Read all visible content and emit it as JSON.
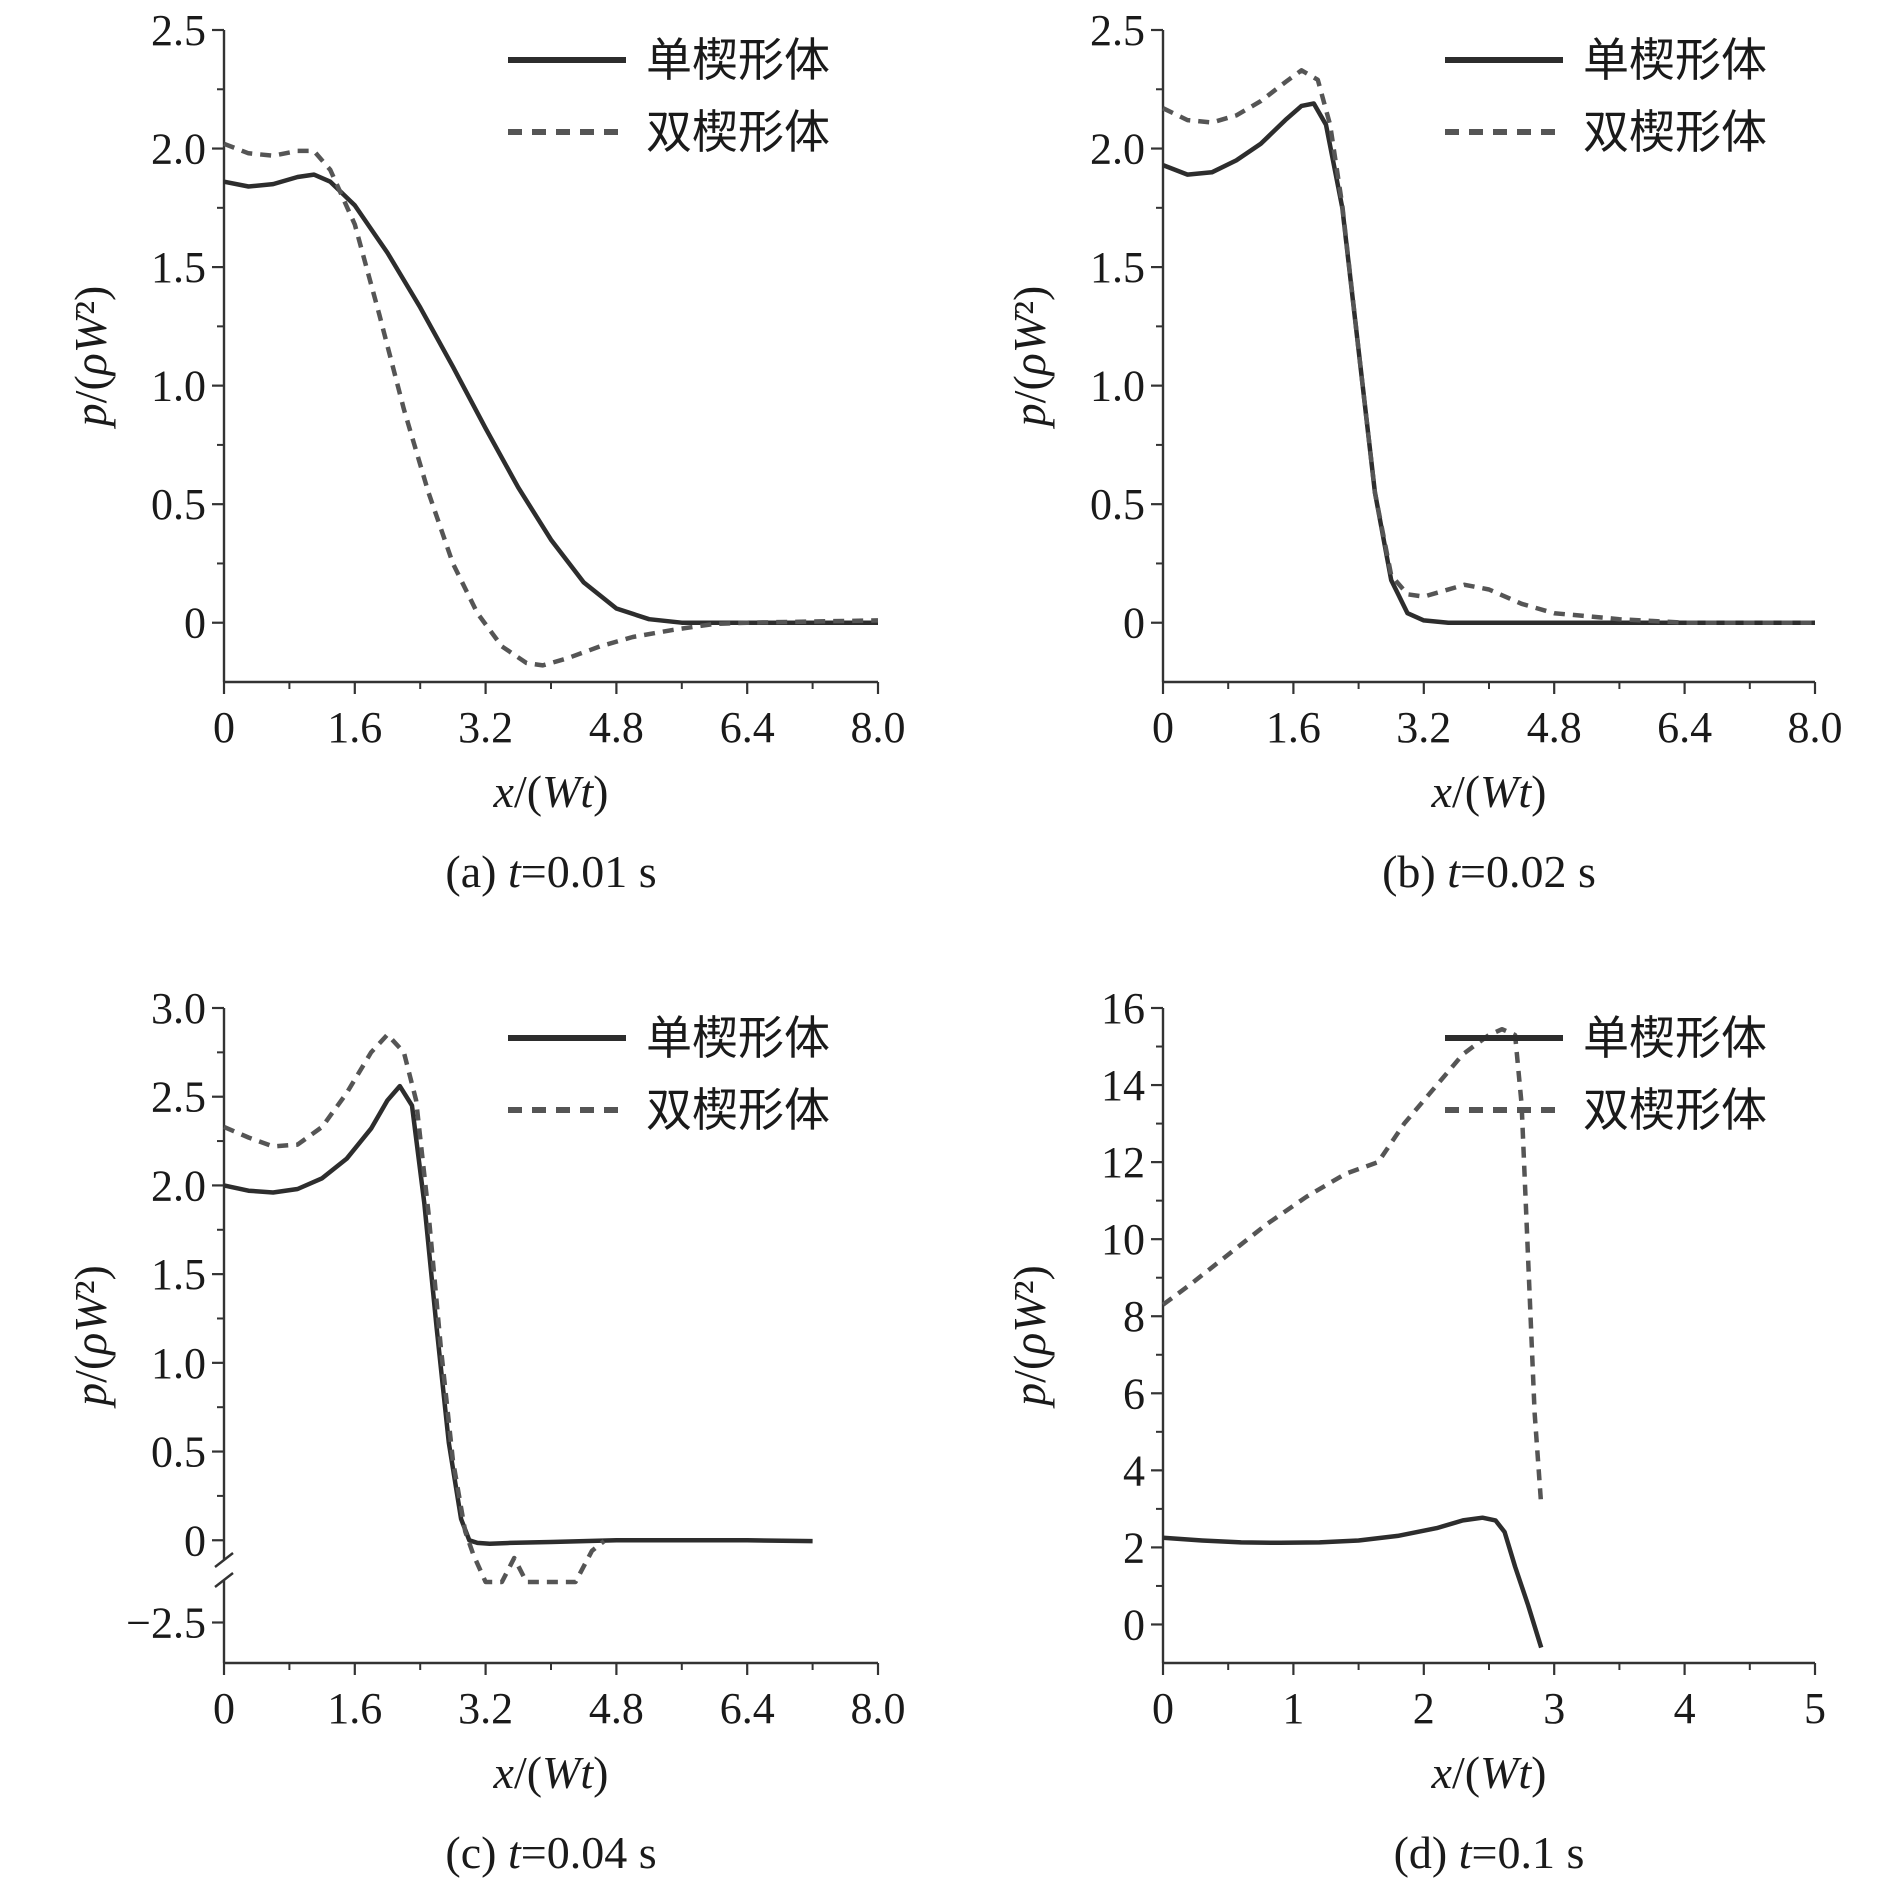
{
  "legend": {
    "series_solid": "单楔形体",
    "series_dashed": "双楔形体"
  },
  "colors": {
    "solid": "#2d2d2d",
    "dashed": "#555555",
    "axis": "#333333",
    "text": "#1a1a1a"
  },
  "chart_data": [
    {
      "type": "line",
      "panel": "a",
      "caption_prefix": "(a) ",
      "caption_var": "t",
      "caption_suffix": "=0.01 s",
      "xlabel": "x/(Wt)",
      "ylabel": "p/(ρW²)",
      "xlim": [
        0,
        8.0
      ],
      "ylim": [
        -0.25,
        2.5
      ],
      "xticks": [
        "0",
        "1.6",
        "3.2",
        "4.8",
        "6.4",
        "8.0"
      ],
      "xtick_values": [
        0,
        1.6,
        3.2,
        4.8,
        6.4,
        8.0
      ],
      "yticks": [
        "0",
        "0.5",
        "1.0",
        "1.5",
        "2.0",
        "2.5"
      ],
      "ytick_values": [
        0,
        0.5,
        1.0,
        1.5,
        2.0,
        2.5
      ],
      "series": [
        {
          "name": "单楔形体",
          "style": "solid",
          "x": [
            0,
            0.3,
            0.6,
            0.9,
            1.1,
            1.3,
            1.6,
            2.0,
            2.4,
            2.8,
            3.2,
            3.6,
            4.0,
            4.4,
            4.8,
            5.2,
            5.6,
            6.4,
            7.2,
            8.0
          ],
          "y": [
            1.86,
            1.84,
            1.85,
            1.88,
            1.89,
            1.86,
            1.76,
            1.56,
            1.33,
            1.08,
            0.82,
            0.57,
            0.35,
            0.17,
            0.06,
            0.015,
            0.0,
            0.0,
            0.0,
            0.0
          ]
        },
        {
          "name": "双楔形体",
          "style": "dashed",
          "x": [
            0,
            0.3,
            0.6,
            0.9,
            1.1,
            1.3,
            1.6,
            1.9,
            2.2,
            2.5,
            2.8,
            3.1,
            3.4,
            3.7,
            3.9,
            4.2,
            4.6,
            5.0,
            5.5,
            6.0,
            6.4,
            7.2,
            8.0
          ],
          "y": [
            2.02,
            1.98,
            1.97,
            1.99,
            1.99,
            1.91,
            1.68,
            1.3,
            0.9,
            0.55,
            0.25,
            0.04,
            -0.1,
            -0.17,
            -0.18,
            -0.15,
            -0.1,
            -0.06,
            -0.03,
            -0.005,
            0.0,
            0.005,
            0.01
          ]
        }
      ]
    },
    {
      "type": "line",
      "panel": "b",
      "caption_prefix": "(b) ",
      "caption_var": "t",
      "caption_suffix": "=0.02 s",
      "xlabel": "x/(Wt)",
      "ylabel": "p/(ρW²)",
      "xlim": [
        0,
        8.0
      ],
      "ylim": [
        -0.25,
        2.5
      ],
      "xticks": [
        "0",
        "1.6",
        "3.2",
        "4.8",
        "6.4",
        "8.0"
      ],
      "xtick_values": [
        0,
        1.6,
        3.2,
        4.8,
        6.4,
        8.0
      ],
      "yticks": [
        "0",
        "0.5",
        "1.0",
        "1.5",
        "2.0",
        "2.5"
      ],
      "ytick_values": [
        0,
        0.5,
        1.0,
        1.5,
        2.0,
        2.5
      ],
      "series": [
        {
          "name": "单楔形体",
          "style": "solid",
          "x": [
            0,
            0.3,
            0.6,
            0.9,
            1.2,
            1.5,
            1.7,
            1.85,
            2.0,
            2.2,
            2.4,
            2.6,
            2.8,
            3.0,
            3.2,
            3.5,
            4.0,
            4.8,
            6.4,
            8.0
          ],
          "y": [
            1.93,
            1.89,
            1.9,
            1.95,
            2.02,
            2.12,
            2.18,
            2.19,
            2.1,
            1.75,
            1.15,
            0.55,
            0.18,
            0.04,
            0.01,
            0.0,
            0.0,
            0.0,
            0.0,
            0.0
          ]
        },
        {
          "name": "双楔形体",
          "style": "dashed",
          "x": [
            0,
            0.3,
            0.6,
            0.9,
            1.2,
            1.5,
            1.7,
            1.9,
            2.05,
            2.2,
            2.4,
            2.6,
            2.8,
            3.0,
            3.2,
            3.4,
            3.7,
            4.0,
            4.4,
            4.8,
            5.6,
            6.4,
            8.0
          ],
          "y": [
            2.17,
            2.12,
            2.11,
            2.14,
            2.2,
            2.28,
            2.33,
            2.29,
            2.1,
            1.76,
            1.15,
            0.55,
            0.2,
            0.12,
            0.11,
            0.13,
            0.16,
            0.14,
            0.08,
            0.04,
            0.015,
            0.0,
            0.0
          ]
        }
      ]
    },
    {
      "type": "line",
      "panel": "c",
      "caption_prefix": "(c) ",
      "caption_var": "t",
      "caption_suffix": "=0.04 s",
      "xlabel": "x/(Wt)",
      "ylabel": "p/(ρW²)",
      "xlim": [
        0,
        8.0
      ],
      "y_break": {
        "upper_range": [
          -0.1,
          3.0
        ],
        "lower_range": [
          -2.8,
          -2.2
        ],
        "lower_tick": "−2.5",
        "lower_tick_value": -2.5
      },
      "xticks": [
        "0",
        "1.6",
        "3.2",
        "4.8",
        "6.4",
        "8.0"
      ],
      "xtick_values": [
        0,
        1.6,
        3.2,
        4.8,
        6.4,
        8.0
      ],
      "yticks": [
        "0",
        "0.5",
        "1.0",
        "1.5",
        "2.0",
        "2.5",
        "3.0"
      ],
      "ytick_values": [
        0,
        0.5,
        1.0,
        1.5,
        2.0,
        2.5,
        3.0
      ],
      "series": [
        {
          "name": "单楔形体",
          "style": "solid",
          "x": [
            0,
            0.3,
            0.6,
            0.9,
            1.2,
            1.5,
            1.8,
            2.0,
            2.15,
            2.3,
            2.45,
            2.6,
            2.75,
            2.9,
            3.0,
            3.1,
            3.25,
            3.5,
            4.0,
            4.8,
            5.6,
            6.4,
            7.2
          ],
          "y": [
            2.0,
            1.97,
            1.96,
            1.98,
            2.04,
            2.15,
            2.32,
            2.48,
            2.56,
            2.45,
            1.9,
            1.2,
            0.55,
            0.12,
            0.0,
            -0.015,
            -0.02,
            -0.015,
            -0.01,
            0.0,
            0.0,
            0.0,
            -0.005
          ]
        },
        {
          "name": "双楔形体",
          "style": "dashed",
          "x": [
            0,
            0.3,
            0.6,
            0.9,
            1.2,
            1.5,
            1.8,
            2.0,
            2.2,
            2.35,
            2.5,
            2.65,
            2.8,
            2.95,
            3.05,
            3.2,
            3.4,
            3.55,
            3.7,
            3.85,
            3.95,
            4.1,
            4.3,
            4.5,
            4.65
          ],
          "y": [
            2.33,
            2.27,
            2.22,
            2.23,
            2.33,
            2.52,
            2.75,
            2.85,
            2.75,
            2.48,
            1.85,
            1.1,
            0.45,
            0.05,
            -0.08,
            -0.12,
            -0.11,
            -0.1,
            -0.16,
            -0.25,
            -0.28,
            -0.22,
            -0.13,
            -0.06,
            -0.005
          ]
        }
      ]
    },
    {
      "type": "line",
      "panel": "d",
      "caption_prefix": "(d) ",
      "caption_var": "t",
      "caption_suffix": "=0.1 s",
      "xlabel": "x/(Wt)",
      "ylabel": "p/(ρW²)",
      "xlim": [
        0,
        5
      ],
      "ylim": [
        -1,
        16
      ],
      "xticks": [
        "0",
        "1",
        "2",
        "3",
        "4",
        "5"
      ],
      "xtick_values": [
        0,
        1,
        2,
        3,
        4,
        5
      ],
      "yticks": [
        "0",
        "2",
        "4",
        "6",
        "8",
        "10",
        "12",
        "14",
        "16"
      ],
      "ytick_values": [
        0,
        2,
        4,
        6,
        8,
        10,
        12,
        14,
        16
      ],
      "series": [
        {
          "name": "单楔形体",
          "style": "solid",
          "x": [
            0,
            0.3,
            0.6,
            0.9,
            1.2,
            1.5,
            1.8,
            2.1,
            2.3,
            2.45,
            2.55,
            2.62,
            2.7,
            2.8,
            2.9
          ],
          "y": [
            2.25,
            2.18,
            2.13,
            2.12,
            2.13,
            2.18,
            2.3,
            2.5,
            2.7,
            2.77,
            2.7,
            2.4,
            1.5,
            0.5,
            -0.6
          ]
        },
        {
          "name": "双楔形体",
          "style": "dashed",
          "x": [
            0,
            0.2,
            0.5,
            0.8,
            1.1,
            1.4,
            1.65,
            1.85,
            2.1,
            2.3,
            2.5,
            2.6,
            2.7,
            2.75,
            2.8,
            2.85,
            2.9
          ],
          "y": [
            8.3,
            8.8,
            9.6,
            10.4,
            11.1,
            11.7,
            12.0,
            13.0,
            14.0,
            14.8,
            15.3,
            15.45,
            15.3,
            13.5,
            9.5,
            5.5,
            3.1
          ]
        }
      ]
    }
  ]
}
